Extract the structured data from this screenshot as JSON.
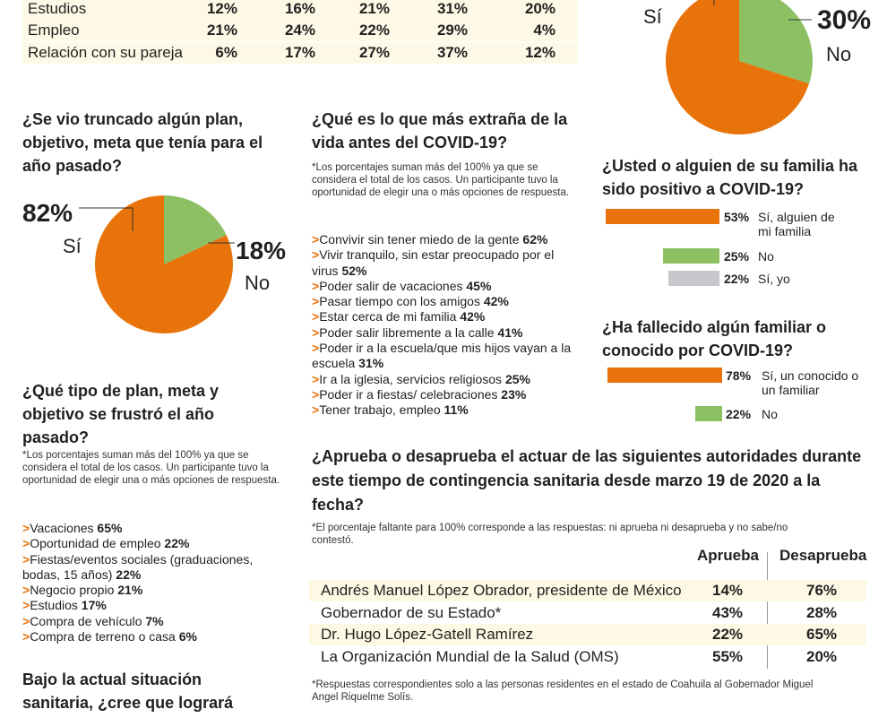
{
  "colors": {
    "orange": "#e8730a",
    "green": "#8cc063",
    "gray": "#c8c8cc"
  },
  "top_table": {
    "rows": [
      {
        "label": "Estudios",
        "values": [
          "12%",
          "16%",
          "21%",
          "31%",
          "20%"
        ]
      },
      {
        "label": "Empleo",
        "values": [
          "21%",
          "24%",
          "22%",
          "29%",
          "4%"
        ]
      },
      {
        "label": "Relación con su pareja",
        "values": [
          "6%",
          "17%",
          "27%",
          "37%",
          "12%"
        ]
      }
    ]
  },
  "pie_top": {
    "yes_label": "Sí",
    "no_pct": "30%",
    "no_label": "No"
  },
  "pie_plan": {
    "title": "¿Se vio truncado algún plan, objetivo, meta que tenía para el año pasado?",
    "yes_pct": "82%",
    "yes_label": "Sí",
    "no_pct": "18%",
    "no_label": "No"
  },
  "missed": {
    "title": "¿Qué es lo que más extraña de la vida antes del COVID-19?",
    "note": "*Los porcentajes suman más del 100% ya que se considera el total de los casos.  Un participante tuvo la oportunidad de elegir una o más opciones de respuesta.",
    "items": [
      {
        "text": "Convivir sin tener miedo de la gente",
        "pct": "62%"
      },
      {
        "text": "Vivir tranquilo, sin estar preocupado por el virus",
        "pct": "52%"
      },
      {
        "text": "Poder salir de vacaciones",
        "pct": "45%"
      },
      {
        "text": "Pasar tiempo con los amigos",
        "pct": "42%"
      },
      {
        "text": "Estar cerca de mi familia",
        "pct": "42%"
      },
      {
        "text": "Poder salir libremente a la calle",
        "pct": "41%"
      },
      {
        "text": "Poder ir a la escuela/que mis hijos vayan a la escuela",
        "pct": "31%"
      },
      {
        "text": "Ir a la iglesia, servicios religiosos",
        "pct": "25%"
      },
      {
        "text": "Poder ir a fiestas/ celebraciones",
        "pct": "23%"
      },
      {
        "text": "Tener trabajo, empleo",
        "pct": "11%"
      }
    ]
  },
  "frustrated": {
    "title": "¿Qué tipo de plan, meta y objetivo se frustró el año pasado?",
    "note": "*Los porcentajes suman más del 100% ya que se considera el total de los casos.  Un participante tuvo la oportunidad de elegir una o más opciones de respuesta.",
    "items": [
      {
        "text": "Vacaciones",
        "pct": "65%"
      },
      {
        "text": "Oportunidad de empleo",
        "pct": "22%"
      },
      {
        "text": "Fiestas/eventos sociales (graduaciones, bodas, 15 años)",
        "pct": "22%"
      },
      {
        "text": "Negocio propio",
        "pct": "21%"
      },
      {
        "text": "Estudios",
        "pct": "17%"
      },
      {
        "text": "Compra de vehículo",
        "pct": "7%"
      },
      {
        "text": "Compra de terreno o casa",
        "pct": "6%"
      }
    ]
  },
  "bajo": {
    "title": "Bajo la actual situación sanitaria, ¿cree que logrará"
  },
  "positive": {
    "title": "¿Usted o alguien de su familia ha sido positivo a COVID-19?",
    "bars": [
      {
        "pct": "53%",
        "label": "Sí, alguien de mi familia",
        "value": 53
      },
      {
        "pct": "25%",
        "label": "No",
        "value": 25
      },
      {
        "pct": "22%",
        "label": "Sí, yo",
        "value": 22
      }
    ]
  },
  "deceased": {
    "title": "¿Ha fallecido algún familiar o conocido por COVID-19?",
    "bars": [
      {
        "pct": "78%",
        "label": "Sí, un conocido o un familiar",
        "value": 78
      },
      {
        "pct": "22%",
        "label": "No",
        "value": 22
      }
    ]
  },
  "approval": {
    "title": "¿Aprueba o desaprueba el actuar de las siguientes autoridades durante este tiempo de contingencia sanitaria desde marzo 19 de 2020 a la fecha?",
    "note": "*El porcentaje faltante para 100% corresponde a las respuestas: ni aprueba ni desaprueba y no sabe/no contestó.",
    "col_approve": "Aprueba",
    "col_disapprove": "Desaprueba",
    "rows": [
      {
        "name": "Andrés Manuel López Obrador, presidente de México",
        "approve": "14%",
        "disapprove": "76%"
      },
      {
        "name": "Gobernador de su Estado*",
        "approve": "43%",
        "disapprove": "28%"
      },
      {
        "name": "Dr. Hugo López-Gatell Ramírez",
        "approve": "22%",
        "disapprove": "65%"
      },
      {
        "name": "La Organización Mundial de la Salud (OMS)",
        "approve": "55%",
        "disapprove": "20%"
      }
    ],
    "footnote": "*Respuestas correspondientes solo a las personas residentes en el estado de Coahuila al Gobernador Miguel Angel Riquelme Solís."
  },
  "chart_data": [
    {
      "type": "pie",
      "title": "",
      "categories": [
        "Sí",
        "No"
      ],
      "values": [
        70,
        30
      ]
    },
    {
      "type": "pie",
      "title": "¿Se vio truncado algún plan, objetivo, meta que tenía para el año pasado?",
      "categories": [
        "Sí",
        "No"
      ],
      "values": [
        82,
        18
      ]
    },
    {
      "type": "bar",
      "title": "¿Usted o alguien de su familia ha sido positivo a COVID-19?",
      "categories": [
        "Sí, alguien de mi familia",
        "No",
        "Sí, yo"
      ],
      "values": [
        53,
        25,
        22
      ]
    },
    {
      "type": "bar",
      "title": "¿Ha fallecido algún familiar o conocido por COVID-19?",
      "categories": [
        "Sí, un conocido o un familiar",
        "No"
      ],
      "values": [
        78,
        22
      ]
    }
  ]
}
